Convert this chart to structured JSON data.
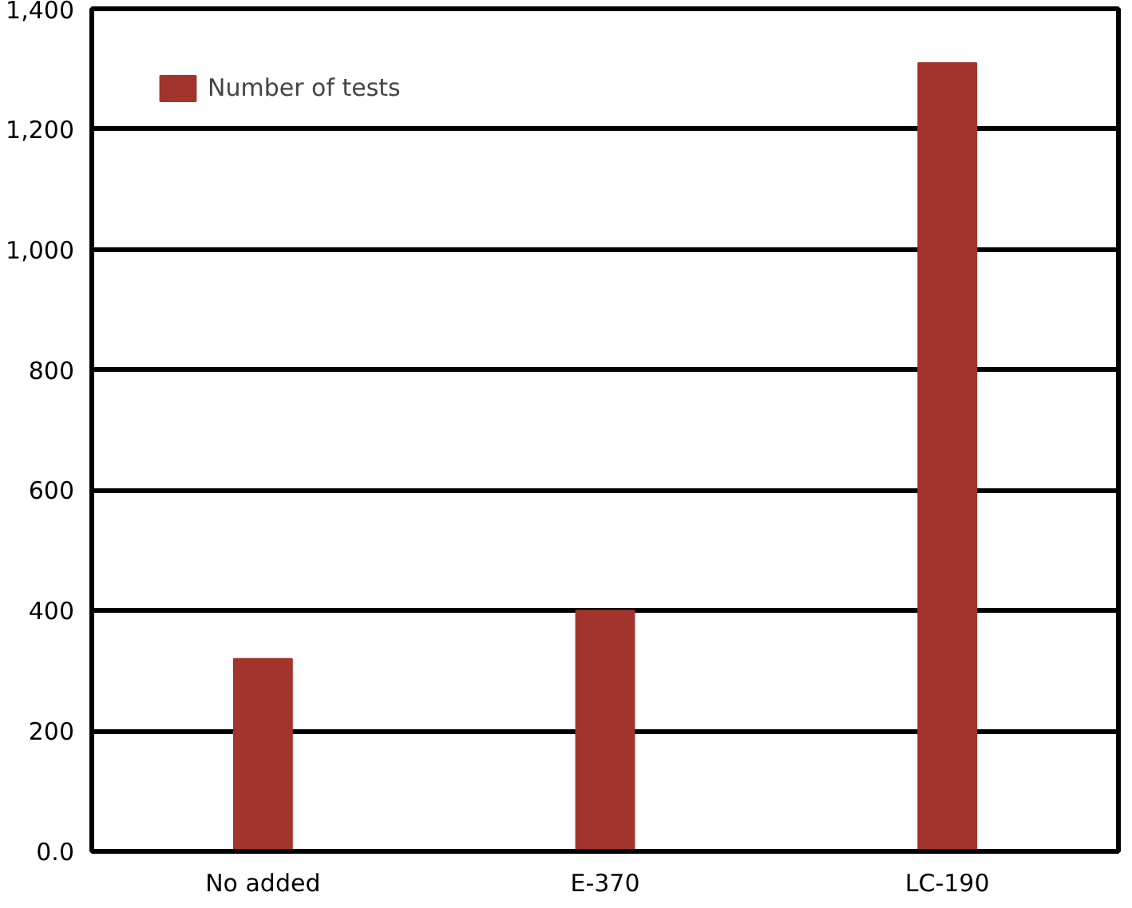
{
  "chart_data": {
    "type": "bar",
    "categories": [
      "No added",
      "E-370",
      "LC-190"
    ],
    "series": [
      {
        "name": "Number of tests",
        "color": "#a3332d",
        "values": [
          320,
          400,
          1310
        ]
      }
    ],
    "ylim": [
      0,
      1400
    ],
    "yticks": [
      {
        "value": 0,
        "label": "0.0"
      },
      {
        "value": 200,
        "label": "200"
      },
      {
        "value": 400,
        "label": "400"
      },
      {
        "value": 600,
        "label": "600"
      },
      {
        "value": 800,
        "label": "800"
      },
      {
        "value": 1000,
        "label": "1,000"
      },
      {
        "value": 1200,
        "label": "1,200"
      },
      {
        "value": 1400,
        "label": "1,400"
      }
    ],
    "grid": "y",
    "legend": "top left"
  }
}
